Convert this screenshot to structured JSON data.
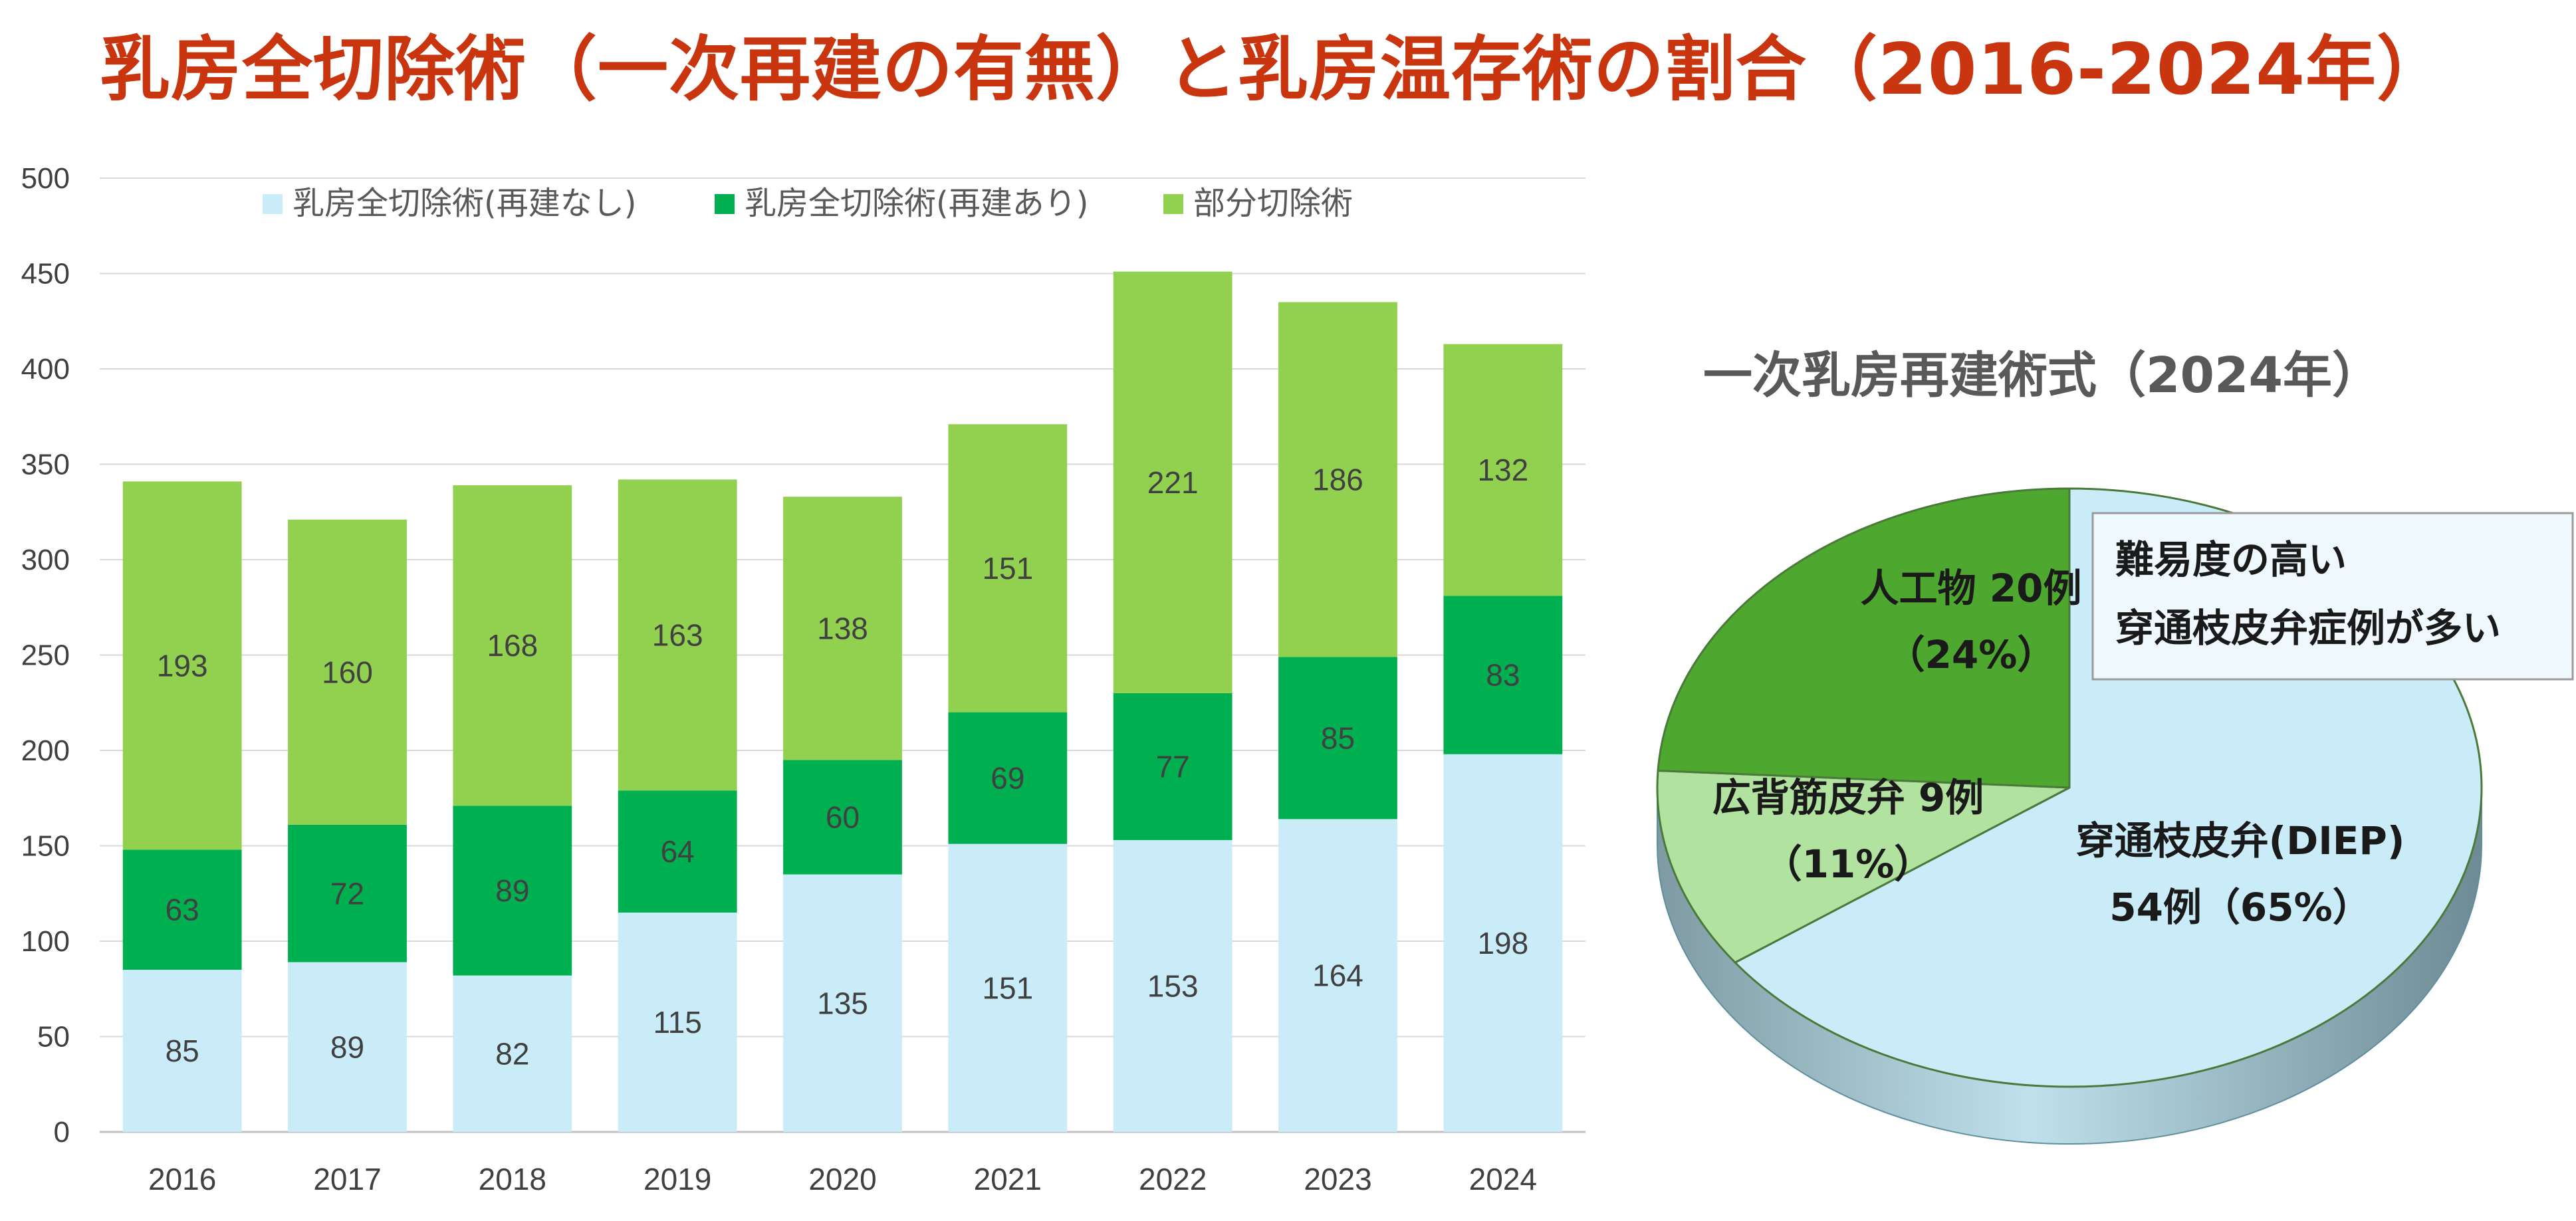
{
  "title": "乳房全切除術（一次再建の有無）と乳房温存術の割合（2016-2024年）",
  "colors": {
    "title": "#c8350e",
    "mastectomy_no_recon": "#c9ecf8",
    "mastectomy_recon": "#00b050",
    "partial": "#92d050",
    "pie_diep": "#c9ecf8",
    "pie_ld": "#b1e29f",
    "pie_implant": "#4ea72e"
  },
  "chart_data": [
    {
      "type": "bar",
      "stacked": true,
      "categories": [
        "2016",
        "2017",
        "2018",
        "2019",
        "2020",
        "2021",
        "2022",
        "2023",
        "2024"
      ],
      "series": [
        {
          "name": "乳房全切除術(再建なし)",
          "values": [
            85,
            89,
            82,
            115,
            135,
            151,
            153,
            164,
            198
          ],
          "color": "#c9ecf8"
        },
        {
          "name": "乳房全切除術(再建あり)",
          "values": [
            63,
            72,
            89,
            64,
            60,
            69,
            77,
            85,
            83
          ],
          "color": "#00b050"
        },
        {
          "name": "部分切除術",
          "values": [
            193,
            160,
            168,
            163,
            138,
            151,
            221,
            186,
            132
          ],
          "color": "#92d050"
        }
      ],
      "ylim": [
        0,
        500
      ],
      "yticks": [
        "0",
        "50",
        "100",
        "150",
        "200",
        "250",
        "300",
        "350",
        "400",
        "450",
        "500"
      ],
      "grid": true,
      "legend_position": "top"
    },
    {
      "type": "pie",
      "title": "一次乳房再建術式（2024年）",
      "slices": [
        {
          "key": "diep",
          "label_line1": "穿通枝皮弁(DIEP)",
          "label_line2": "54例（65%）",
          "value": 54,
          "percent": 65,
          "color": "#c9ecf8"
        },
        {
          "key": "ld",
          "label_line1": "広背筋皮弁 9例",
          "label_line2": "（11%）",
          "value": 9,
          "percent": 11,
          "color": "#b1e29f"
        },
        {
          "key": "implant",
          "label_line1": "人工物 20例",
          "label_line2": "（24%）",
          "value": 20,
          "percent": 24,
          "color": "#4ea72e"
        }
      ],
      "annotation": {
        "line1": "難易度の高い",
        "line2": "穿通枝皮弁症例が多い"
      }
    }
  ]
}
